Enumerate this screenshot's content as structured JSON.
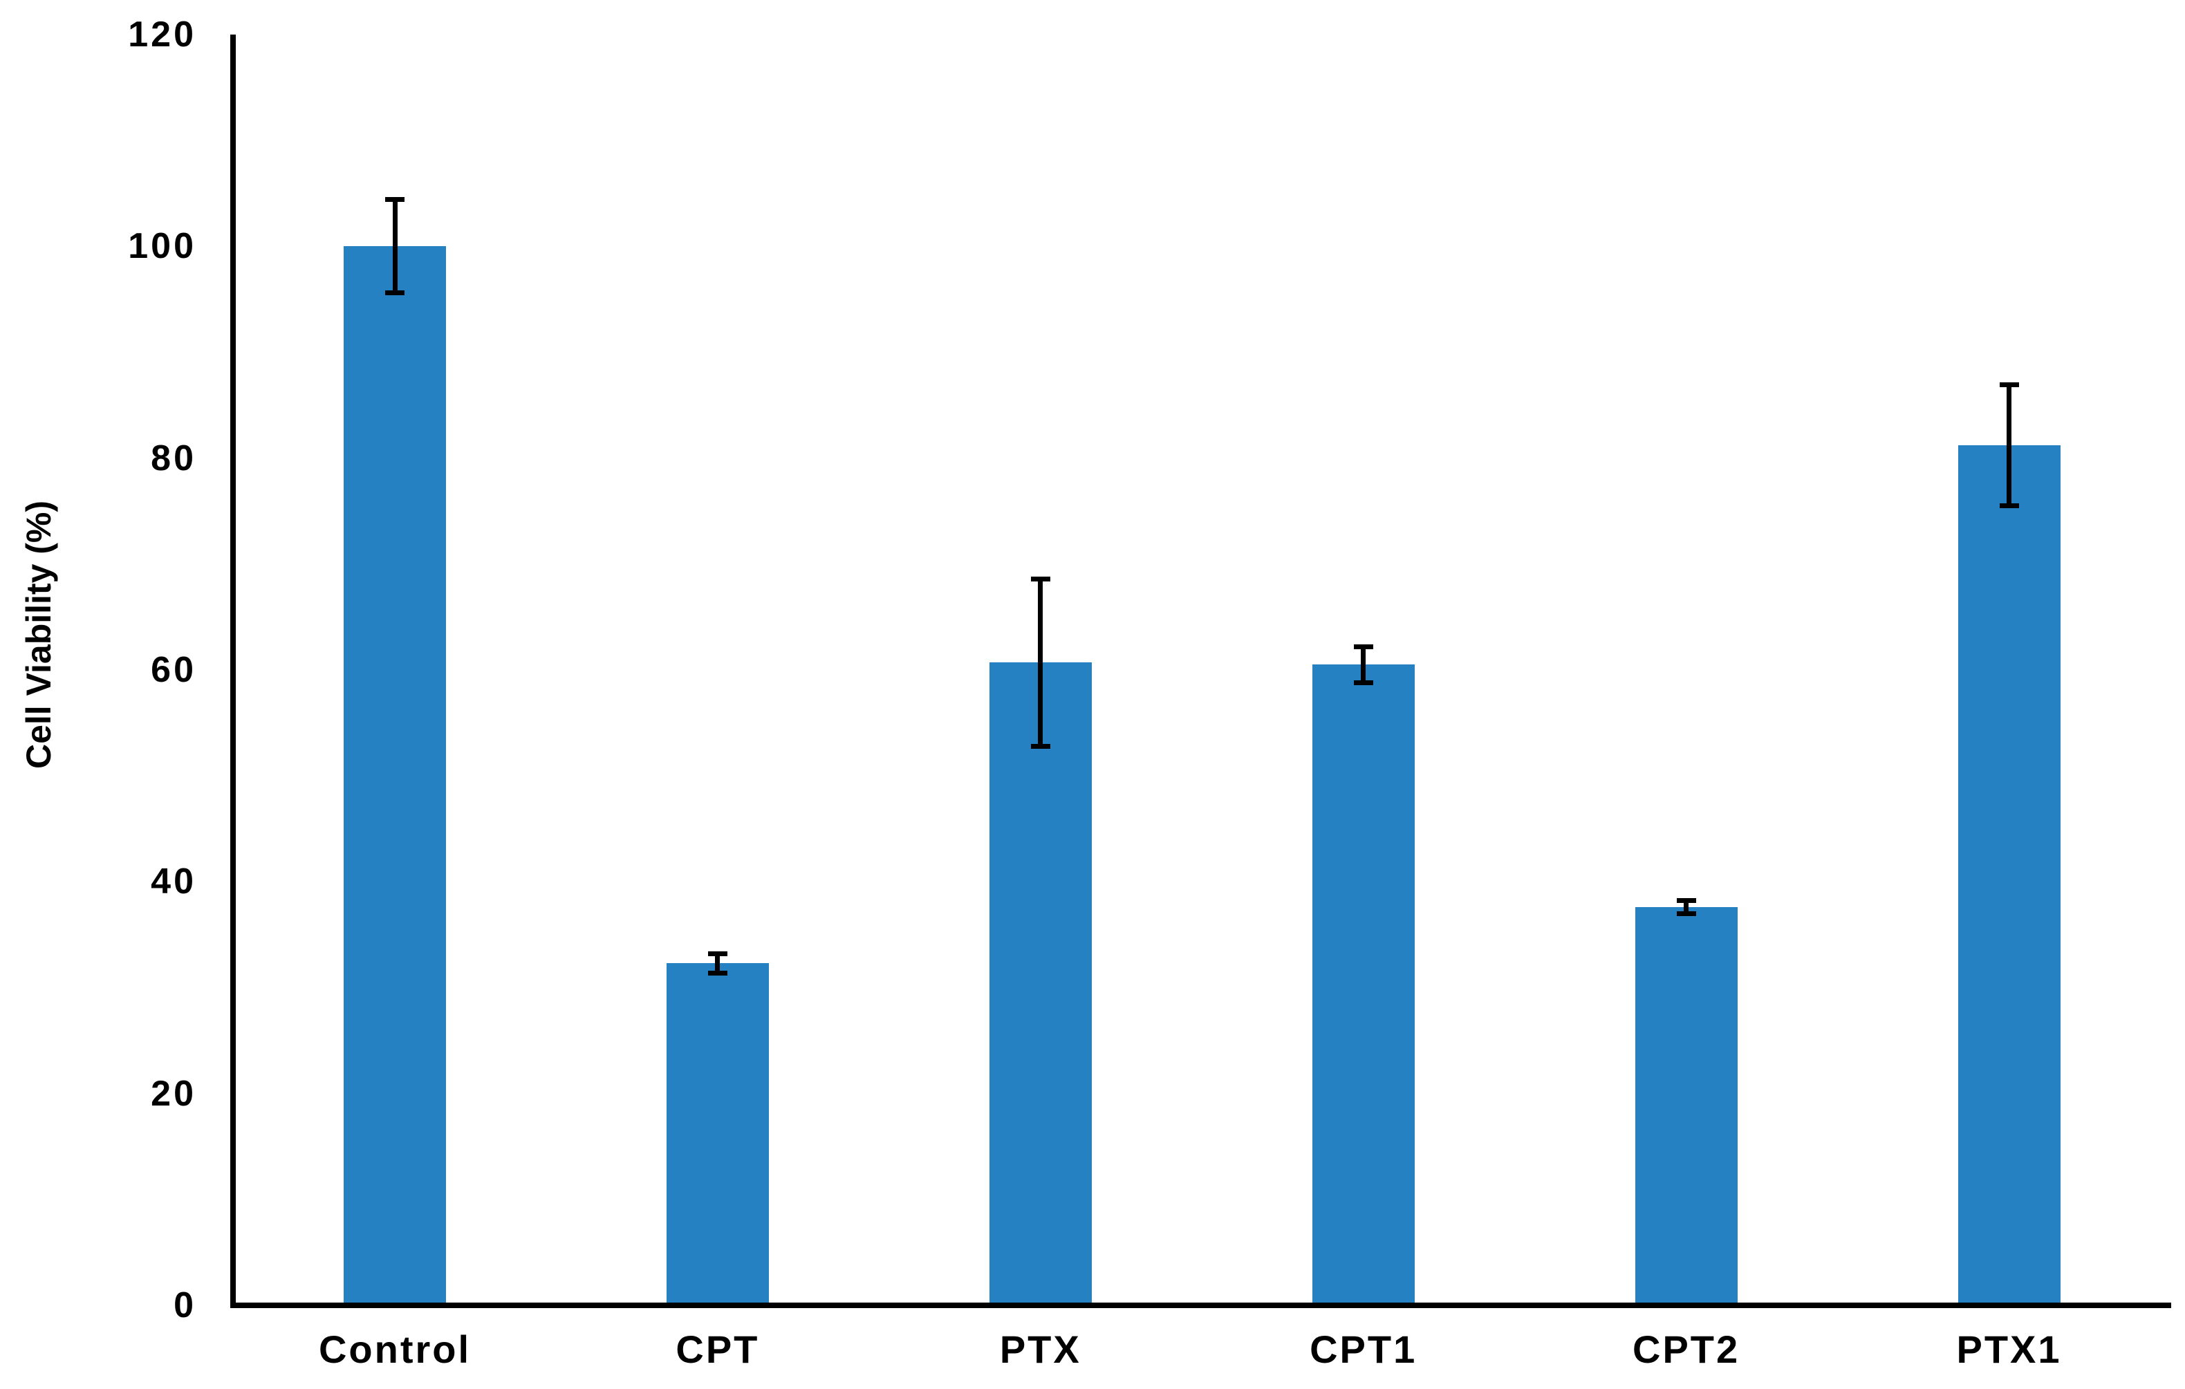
{
  "page": {
    "background": "#ffffff"
  },
  "chart_data": {
    "type": "bar",
    "title": "",
    "xlabel": "",
    "ylabel": "Cell Viability (%)",
    "categories": [
      "Control",
      "CPT",
      "PTX",
      "CPT1",
      "CPT2",
      "PTX1"
    ],
    "values": [
      100,
      32.3,
      60.7,
      60.5,
      37.6,
      81.2
    ],
    "error_bars": [
      4.4,
      0.9,
      7.9,
      1.7,
      0.6,
      5.7
    ],
    "yticks": [
      0,
      20,
      40,
      60,
      80,
      100,
      120
    ],
    "ylim": [
      0,
      120
    ],
    "grid": false,
    "legend": false,
    "bar_color": "#2581c1",
    "error_color": "#000000",
    "axis_color": "#000000",
    "text_color": "#000000"
  }
}
